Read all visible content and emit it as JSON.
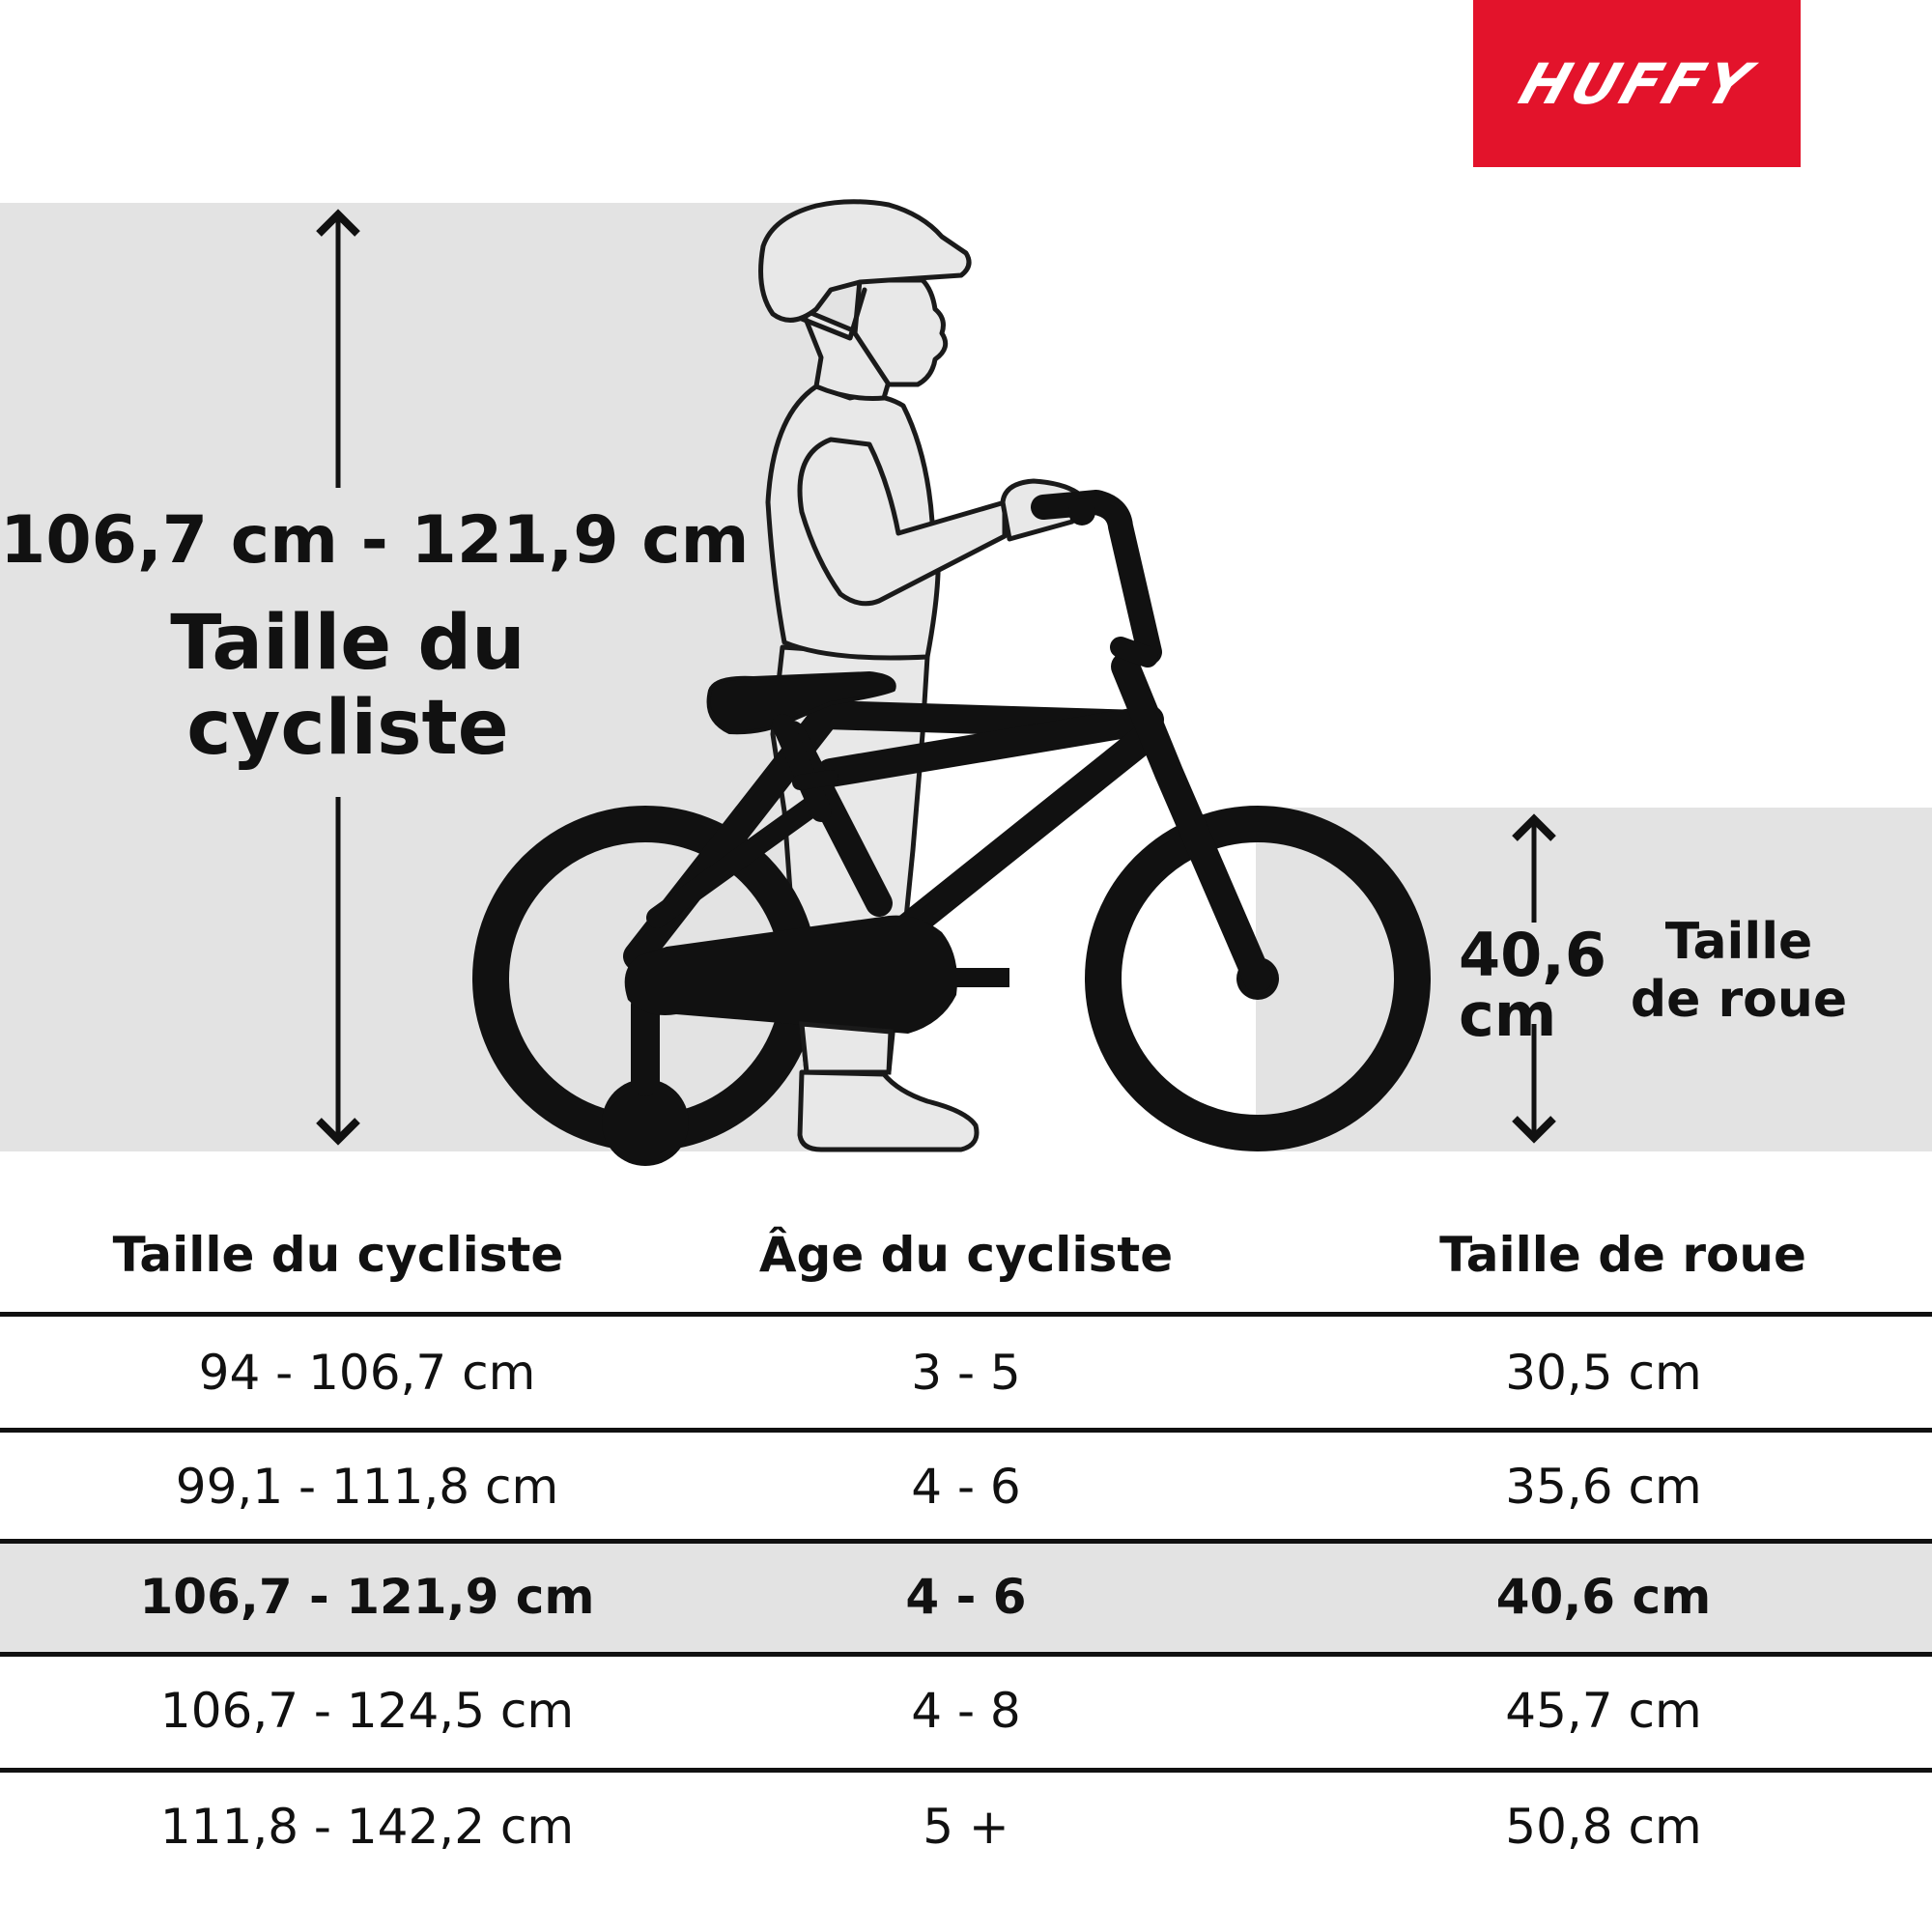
{
  "brand": {
    "logo_text": "HUFFY",
    "color": "#e3132b"
  },
  "diagram": {
    "rider_height_value": "106,7 cm - 121,9 cm",
    "rider_height_label": "Taille du cycliste",
    "wheel_size_value": "40,6 cm",
    "wheel_size_label": "Taille de roue",
    "illustration_icon": "child-with-bike-icon"
  },
  "table": {
    "headers": [
      "Taille du cycliste",
      "Âge du cycliste",
      "Taille de roue"
    ],
    "rows": [
      [
        "94 - 106,7 cm",
        "3 - 5",
        "30,5 cm"
      ],
      [
        "99,1 - 111,8 cm",
        "4 - 6",
        "35,6 cm"
      ],
      [
        "106,7 - 121,9 cm",
        "4 - 6",
        "40,6 cm"
      ],
      [
        "106,7 - 124,5 cm",
        "4 - 8",
        "45,7 cm"
      ],
      [
        "111,8 - 142,2 cm",
        "5 +",
        "50,8 cm"
      ]
    ],
    "highlighted_row": 2,
    "highlight_color": "#e3e3e3"
  }
}
